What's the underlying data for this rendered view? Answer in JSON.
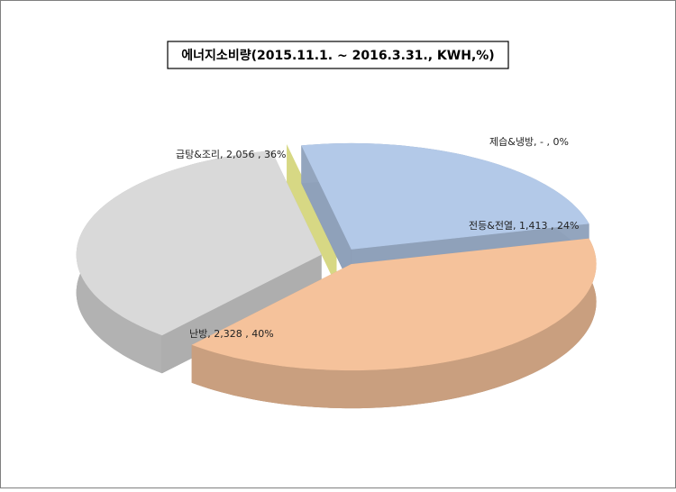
{
  "chart_data": {
    "type": "pie3d",
    "title": "에너지소비량(2015.11.1.  ~  2016.3.31.,  KWH,%)",
    "data_labels": [
      "난방, 2,328 , 40%",
      "급탕&조리, 2,056 , 36%",
      "제습&냉방, - , 0%",
      "전등&전열, 1,413 , 24%"
    ],
    "values": [
      2328,
      2056,
      0,
      1413
    ],
    "colors": [
      "#f5c29b",
      "#d9d9d9",
      "#d4d67c",
      "#b3c9e8"
    ]
  }
}
